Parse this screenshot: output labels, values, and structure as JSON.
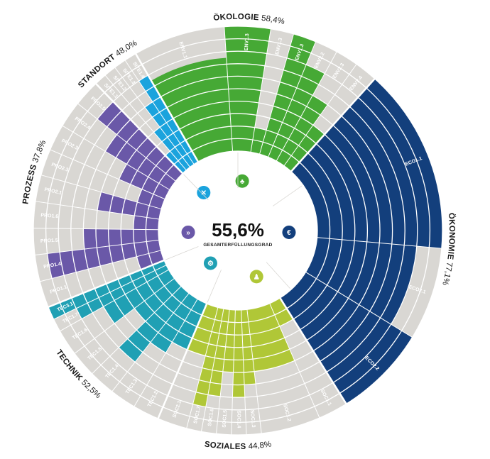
{
  "chart_data": {
    "type": "radial-bar",
    "title": "",
    "total": {
      "value": "55,6%",
      "label": "GESAMTERFÜLLUNGSGRAD"
    },
    "rings": 10,
    "background_color": "#d9d7d3",
    "categories": [
      {
        "name": "ÖKOLOGIE",
        "percent": "58,4%",
        "color": "#46a935",
        "icon": "tree-icon",
        "segments": [
          {
            "code": "ENV1.1",
            "rings": 7.5,
            "weight": 2
          },
          {
            "code": "ENV1.3",
            "rings": 10,
            "weight": 1
          },
          {
            "code": "ENV1.3",
            "rings": 2,
            "weight": 0.5
          },
          {
            "code": "ENV1.3",
            "rings": 10,
            "weight": 0.5
          },
          {
            "code": "ENV2.2",
            "rings": 8,
            "weight": 0.5
          },
          {
            "code": "ENV2.3",
            "rings": 6,
            "weight": 0.5
          },
          {
            "code": "ENV2.4",
            "rings": 4,
            "weight": 0.5
          }
        ]
      },
      {
        "name": "ÖKONOMIE",
        "percent": "77,1%",
        "color": "#133f7c",
        "icon": "euro-icon",
        "segments": [
          {
            "code": "ECO1.1",
            "rings": 10,
            "weight": 2
          },
          {
            "code": "ECO2.1",
            "rings": 8,
            "weight": 1
          },
          {
            "code": "ECO2.2",
            "rings": 10,
            "weight": 1
          }
        ]
      },
      {
        "name": "SOZIALES",
        "percent": "44,8%",
        "color": "#b0c737",
        "icon": "people-icon",
        "segments": [
          {
            "code": "SOC1.1",
            "rings": 2,
            "weight": 1
          },
          {
            "code": "SOC1.2",
            "rings": 5,
            "weight": 2
          },
          {
            "code": "SOC1.3",
            "rings": 6,
            "weight": 0.5
          },
          {
            "code": "SOC1.4",
            "rings": 7,
            "weight": 0.5
          },
          {
            "code": "SOC1.5",
            "rings": 5,
            "weight": 0.5
          },
          {
            "code": "SOC1.6",
            "rings": 7,
            "weight": 0.5
          },
          {
            "code": "SOC1.7",
            "rings": 8,
            "weight": 0.5
          },
          {
            "code": "SOC2.1",
            "rings": 4,
            "weight": 1
          }
        ]
      },
      {
        "name": "TECHNIK",
        "percent": "52,5%",
        "color": "#20a0b4",
        "icon": "gears-icon",
        "segments": [
          {
            "code": "TEC1.2",
            "rings": 4,
            "weight": 1
          },
          {
            "code": "TEC1.3",
            "rings": 5,
            "weight": 1
          },
          {
            "code": "TEC1.4",
            "rings": 7,
            "weight": 1
          },
          {
            "code": "TEC1.5",
            "rings": 4,
            "weight": 1
          },
          {
            "code": "TEC1.6",
            "rings": 6,
            "weight": 1
          },
          {
            "code": "TEC1.7",
            "rings": 8,
            "weight": 0.5
          },
          {
            "code": "TEC3.1",
            "rings": 10,
            "weight": 0.5
          }
        ]
      },
      {
        "name": "PROZESS",
        "percent": "37,8%",
        "color": "#6a58a8",
        "icon": "arrows-icon",
        "segments": [
          {
            "code": "PRO1.1",
            "rings": 2,
            "weight": 0.6
          },
          {
            "code": "PRO1.4",
            "rings": 9,
            "weight": 0.6
          },
          {
            "code": "PRO1.5",
            "rings": 6,
            "weight": 0.6
          },
          {
            "code": "PRO1.6",
            "rings": 2,
            "weight": 0.6
          },
          {
            "code": "PRO2.1",
            "rings": 5,
            "weight": 0.6
          },
          {
            "code": "PRO2.3",
            "rings": 2,
            "weight": 0.6
          },
          {
            "code": "PRO2.3",
            "rings": 4,
            "weight": 0.6
          },
          {
            "code": "PRO2.4",
            "rings": 6,
            "weight": 0.6
          },
          {
            "code": "PRO2.5",
            "rings": 8,
            "weight": 0.6
          }
        ]
      },
      {
        "name": "STANDORT",
        "percent": "48,0%",
        "color": "#1aa3dd",
        "icon": "pin-icon",
        "segments": [
          {
            "code": "SITE1.1",
            "rings": 2,
            "weight": 0.6
          },
          {
            "code": "SITE1.2",
            "rings": 4,
            "weight": 0.6
          },
          {
            "code": "SITE1.3",
            "rings": 6,
            "weight": 0.6
          },
          {
            "code": "SITE1.4",
            "rings": 8,
            "weight": 0.6
          }
        ]
      }
    ]
  }
}
